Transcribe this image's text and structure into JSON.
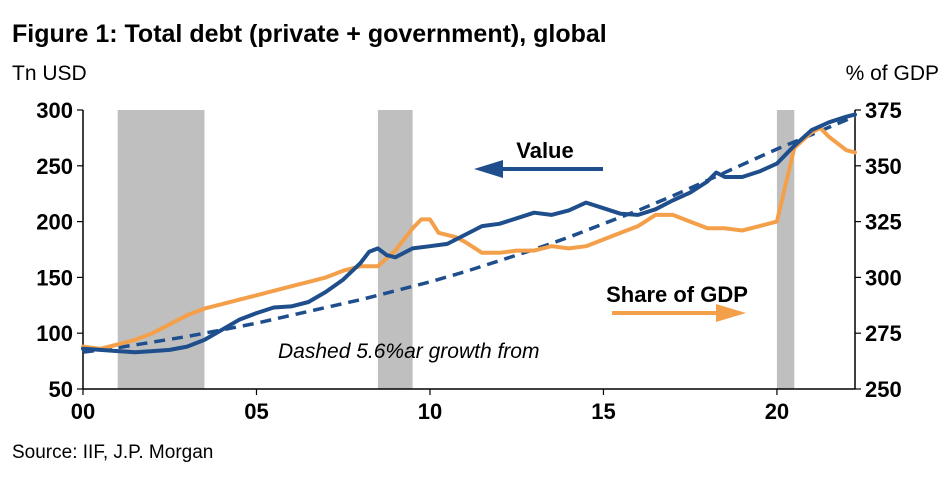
{
  "chart_data": {
    "type": "line",
    "title": "Figure 1: Total debt (private + government), global",
    "left_unit": "Tn USD",
    "right_unit": "% of GDP",
    "source": "Source: IIF, J.P. Morgan",
    "x_ticks": [
      {
        "value": 2000,
        "label": "00"
      },
      {
        "value": 2005,
        "label": "05"
      },
      {
        "value": 2010,
        "label": "10"
      },
      {
        "value": 2015,
        "label": "15"
      },
      {
        "value": 2020,
        "label": "20"
      }
    ],
    "xlim": [
      2000,
      2022.25
    ],
    "ylim_left": [
      50,
      300
    ],
    "ylim_right": [
      250,
      375
    ],
    "y_ticks_left": [
      300,
      250,
      200,
      150,
      100,
      50
    ],
    "y_ticks_right": [
      375,
      350,
      325,
      300,
      275,
      250
    ],
    "recession_bands": [
      {
        "start": 2001.0,
        "end": 2003.5
      },
      {
        "start": 2008.5,
        "end": 2009.5
      },
      {
        "start": 2020.0,
        "end": 2020.5
      }
    ],
    "series": [
      {
        "name": "Value",
        "axis": "left",
        "color": "#1F4E8C",
        "style": "solid",
        "points": [
          [
            2000.0,
            86
          ],
          [
            2000.5,
            85
          ],
          [
            2001.0,
            84
          ],
          [
            2001.5,
            83
          ],
          [
            2002.0,
            84
          ],
          [
            2002.5,
            85
          ],
          [
            2003.0,
            88
          ],
          [
            2003.5,
            94
          ],
          [
            2004.0,
            103
          ],
          [
            2004.5,
            112
          ],
          [
            2005.0,
            118
          ],
          [
            2005.5,
            123
          ],
          [
            2006.0,
            124
          ],
          [
            2006.5,
            128
          ],
          [
            2007.0,
            137
          ],
          [
            2007.5,
            148
          ],
          [
            2008.0,
            163
          ],
          [
            2008.25,
            173
          ],
          [
            2008.5,
            176
          ],
          [
            2008.75,
            170
          ],
          [
            2009.0,
            168
          ],
          [
            2009.5,
            176
          ],
          [
            2010.0,
            178
          ],
          [
            2010.5,
            180
          ],
          [
            2011.0,
            188
          ],
          [
            2011.5,
            196
          ],
          [
            2012.0,
            198
          ],
          [
            2012.5,
            203
          ],
          [
            2013.0,
            208
          ],
          [
            2013.5,
            206
          ],
          [
            2014.0,
            210
          ],
          [
            2014.5,
            217
          ],
          [
            2015.0,
            212
          ],
          [
            2015.5,
            207
          ],
          [
            2016.0,
            206
          ],
          [
            2016.5,
            211
          ],
          [
            2017.0,
            219
          ],
          [
            2017.5,
            226
          ],
          [
            2018.0,
            236
          ],
          [
            2018.25,
            244
          ],
          [
            2018.5,
            240
          ],
          [
            2019.0,
            240
          ],
          [
            2019.5,
            245
          ],
          [
            2020.0,
            252
          ],
          [
            2020.5,
            268
          ],
          [
            2021.0,
            282
          ],
          [
            2021.5,
            289
          ],
          [
            2022.0,
            294
          ],
          [
            2022.25,
            296
          ]
        ]
      },
      {
        "name": "Share of GDP",
        "axis": "right",
        "color": "#F4A04A",
        "style": "solid",
        "points": [
          [
            2000.0,
            269
          ],
          [
            2000.5,
            268
          ],
          [
            2001.0,
            270
          ],
          [
            2001.5,
            272
          ],
          [
            2002.0,
            275
          ],
          [
            2002.5,
            279
          ],
          [
            2003.0,
            283
          ],
          [
            2003.5,
            286
          ],
          [
            2004.0,
            288
          ],
          [
            2004.5,
            290
          ],
          [
            2005.0,
            292
          ],
          [
            2005.5,
            294
          ],
          [
            2006.0,
            296
          ],
          [
            2006.5,
            298
          ],
          [
            2007.0,
            300
          ],
          [
            2007.5,
            303
          ],
          [
            2008.0,
            305
          ],
          [
            2008.5,
            305
          ],
          [
            2009.0,
            312
          ],
          [
            2009.5,
            322
          ],
          [
            2009.75,
            326
          ],
          [
            2010.0,
            326
          ],
          [
            2010.25,
            320
          ],
          [
            2010.75,
            318
          ],
          [
            2011.0,
            316
          ],
          [
            2011.5,
            311
          ],
          [
            2012.0,
            311
          ],
          [
            2012.5,
            312
          ],
          [
            2013.0,
            312
          ],
          [
            2013.5,
            314
          ],
          [
            2014.0,
            313
          ],
          [
            2014.5,
            314
          ],
          [
            2015.0,
            317
          ],
          [
            2015.5,
            320
          ],
          [
            2016.0,
            323
          ],
          [
            2016.5,
            328
          ],
          [
            2017.0,
            328
          ],
          [
            2017.5,
            325
          ],
          [
            2018.0,
            322
          ],
          [
            2018.5,
            322
          ],
          [
            2019.0,
            321
          ],
          [
            2019.5,
            323
          ],
          [
            2020.0,
            325
          ],
          [
            2020.5,
            358
          ],
          [
            2021.0,
            365
          ],
          [
            2021.25,
            367
          ],
          [
            2021.5,
            363
          ],
          [
            2022.0,
            357
          ],
          [
            2022.25,
            356
          ]
        ]
      },
      {
        "name": "Trend",
        "axis": "left",
        "color": "#1F4E8C",
        "style": "dashed",
        "points": [
          [
            2000.0,
            83
          ],
          [
            2001.0,
            87
          ],
          [
            2002.0,
            92
          ],
          [
            2003.0,
            97
          ],
          [
            2004.0,
            103
          ],
          [
            2005.0,
            109
          ],
          [
            2006.0,
            116
          ],
          [
            2007.0,
            123
          ],
          [
            2008.0,
            130
          ],
          [
            2009.0,
            138
          ],
          [
            2010.0,
            146
          ],
          [
            2011.0,
            155
          ],
          [
            2012.0,
            165
          ],
          [
            2013.0,
            175
          ],
          [
            2014.0,
            186
          ],
          [
            2015.0,
            198
          ],
          [
            2016.0,
            210
          ],
          [
            2017.0,
            223
          ],
          [
            2018.0,
            237
          ],
          [
            2019.0,
            251
          ],
          [
            2020.0,
            265
          ],
          [
            2021.0,
            278
          ],
          [
            2022.0,
            291
          ],
          [
            2022.25,
            295
          ]
        ]
      }
    ],
    "annotations": {
      "value_label": "Value",
      "share_label": "Share of GDP",
      "dashed_label": "Dashed 5.6%ar growth from"
    }
  }
}
